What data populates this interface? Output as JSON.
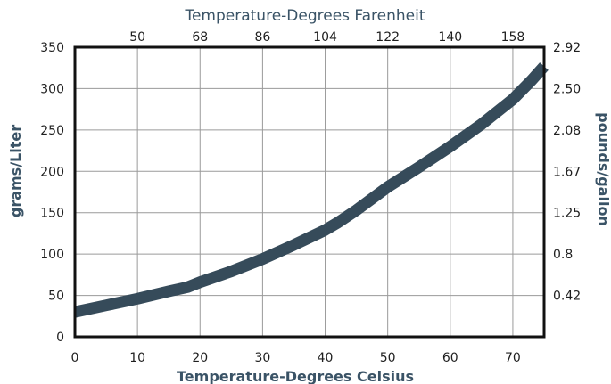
{
  "chart_data": {
    "type": "line",
    "title": "Temperature-Degrees Farenheit",
    "xlabel": "Temperature-Degrees Celsius",
    "ylabel": "grams/Liter",
    "y2label": "pounds/gallon",
    "x_ticks": [
      "0",
      "10",
      "20",
      "30",
      "40",
      "50",
      "60",
      "70"
    ],
    "x2_ticks": [
      "50",
      "68",
      "86",
      "104",
      "122",
      "140",
      "158"
    ],
    "x2_tick_celsius": [
      10,
      20,
      30,
      40,
      50,
      60,
      70
    ],
    "y_ticks": [
      "0",
      "50",
      "100",
      "150",
      "200",
      "250",
      "300",
      "350"
    ],
    "y2_ticks": [
      "0.42",
      "0.8",
      "1.25",
      "1.67",
      "2.08",
      "2.50",
      "2.92"
    ],
    "y2_tick_glL": [
      50,
      100,
      150,
      200,
      250,
      300,
      350
    ],
    "xlim": [
      0,
      75
    ],
    "ylim": [
      0,
      350
    ],
    "grid": true,
    "series": [
      {
        "color": "#364b5a",
        "x": [
          0,
          5,
          10,
          15,
          18,
          20,
          25,
          30,
          35,
          40,
          42,
          45,
          50,
          55,
          60,
          65,
          70,
          73,
          75
        ],
        "y": [
          30,
          38,
          46,
          55,
          60,
          66,
          79,
          94,
          111,
          129,
          138,
          153,
          181,
          205,
          230,
          257,
          287,
          310,
          327
        ]
      }
    ]
  }
}
